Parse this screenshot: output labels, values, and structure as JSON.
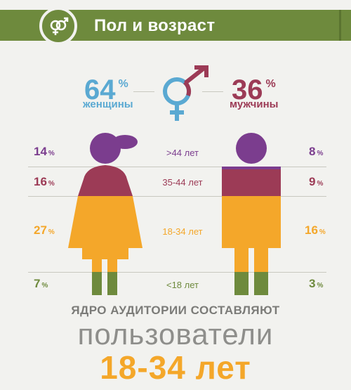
{
  "header": {
    "title": "Пол и возраст",
    "icon": "gender-symbols-icon",
    "color": "#6e8a3d"
  },
  "summary": {
    "women": {
      "value": "64",
      "unit": "%",
      "label": "женщины",
      "color": "#5aa9d2"
    },
    "men": {
      "value": "36",
      "unit": "%",
      "label": "мужчины",
      "color": "#9c3b56"
    }
  },
  "age_groups": [
    {
      "label": ">44 лет",
      "women": "14",
      "men": "8",
      "unit": "%",
      "color": "#7b3d8e"
    },
    {
      "label": "35-44 лет",
      "women": "16",
      "men": "9",
      "unit": "%",
      "color": "#9c3b56"
    },
    {
      "label": "18-34 лет",
      "women": "27",
      "men": "16",
      "unit": "%",
      "color": "#f4a72a"
    },
    {
      "label": "<18 лет",
      "women": "7",
      "men": "3",
      "unit": "%",
      "color": "#6e8a3d"
    }
  ],
  "footer": {
    "core_line": "ЯДРО АУДИТОРИИ СОСТАВЛЯЮТ",
    "users_line": "пользователи",
    "age_line": "18-34 лет"
  }
}
